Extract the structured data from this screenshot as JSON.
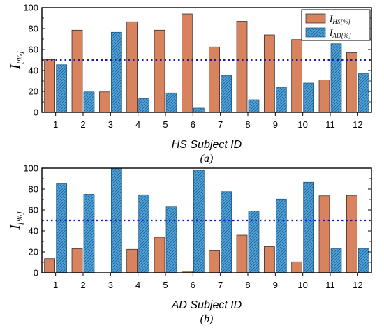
{
  "chart_data": [
    {
      "type": "bar",
      "categories": [
        "1",
        "2",
        "3",
        "4",
        "5",
        "6",
        "7",
        "8",
        "9",
        "10",
        "11",
        "12"
      ],
      "series": [
        {
          "name": "I_HS[%]",
          "values": [
            50.5,
            78.5,
            19.5,
            86.5,
            78.5,
            94,
            62.5,
            87,
            74,
            69.5,
            31,
            57
          ],
          "color": "#D9825E"
        },
        {
          "name": "I_AD[%]",
          "values": [
            45.5,
            19.5,
            76.5,
            13,
            18.5,
            4,
            35,
            12,
            24,
            28,
            65.5,
            37
          ],
          "color": "#4FA3D9"
        }
      ],
      "xlabel": "HS Subject ID",
      "ylabel_main": "I",
      "ylabel_sub": "[%]",
      "ylim": [
        0,
        100
      ],
      "yticks": [
        0,
        20,
        40,
        60,
        80,
        100
      ],
      "reference_line": 50,
      "legend": {
        "placement": "top-right",
        "main": "I",
        "subs": [
          "HS[%]",
          "AD[%]"
        ]
      },
      "caption": "(a)"
    },
    {
      "type": "bar",
      "categories": [
        "1",
        "2",
        "3",
        "4",
        "5",
        "6",
        "7",
        "8",
        "9",
        "10",
        "11",
        "12"
      ],
      "series": [
        {
          "values": [
            13.5,
            23,
            0,
            22.5,
            34,
            1.5,
            21,
            36,
            25,
            10.5,
            73.5,
            74
          ],
          "color": "#D9825E"
        },
        {
          "values": [
            85,
            75,
            100,
            74.5,
            63.5,
            98,
            77.5,
            59,
            70.5,
            86.5,
            23,
            23
          ],
          "color": "#4FA3D9"
        }
      ],
      "xlabel": "AD Subject ID",
      "ylabel_main": "I",
      "ylabel_sub": "[%]",
      "ylim": [
        0,
        100
      ],
      "yticks": [
        0,
        20,
        40,
        60,
        80,
        100
      ],
      "reference_line": 50,
      "caption": "(b)"
    }
  ]
}
